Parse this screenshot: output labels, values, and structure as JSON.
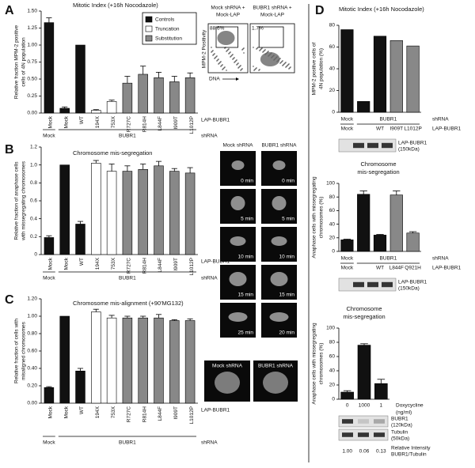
{
  "panel_labels": [
    "A",
    "B",
    "C",
    "D"
  ],
  "chart_data": [
    {
      "type": "bar",
      "title": "Mitotic Index (+16h Nocodazole)",
      "ylabel": [
        "Relative fraction MPM-2 positive",
        "cells of 4N population"
      ],
      "categories": [
        "Mock",
        "Mock",
        "WT",
        "194X",
        "753X",
        "R727C",
        "R814H",
        "L844F",
        "I909T",
        "L1012P"
      ],
      "series": [
        {
          "name": "Controls",
          "color": "#111111",
          "values": [
            1.33,
            0.07,
            1.0,
            null,
            null,
            null,
            null,
            null,
            null,
            null
          ],
          "errors": [
            0.07,
            0.02,
            null,
            null,
            null,
            null,
            null,
            null,
            null,
            null
          ]
        },
        {
          "name": "Truncation",
          "color": "#ffffff",
          "values": [
            null,
            null,
            null,
            0.04,
            0.17,
            null,
            null,
            null,
            null,
            null
          ],
          "errors": [
            null,
            null,
            null,
            0.01,
            0.02,
            null,
            null,
            null,
            null,
            null
          ]
        },
        {
          "name": "Substitution",
          "color": "#888888",
          "values": [
            null,
            null,
            null,
            null,
            null,
            0.44,
            0.57,
            0.52,
            0.46,
            0.52
          ],
          "errors": [
            null,
            null,
            null,
            null,
            null,
            0.1,
            0.12,
            0.08,
            0.08,
            0.07
          ]
        }
      ],
      "ylim": [
        0,
        1.5
      ],
      "yticks": [
        {
          "value": 0,
          "label": "0.00"
        },
        0.25,
        {
          "value": 0.5,
          "label": "0.50"
        },
        0.75,
        {
          "value": 1,
          "label": "1.00"
        },
        1.25,
        {
          "value": 1.5,
          "label": "1.50"
        }
      ],
      "row_label": "LAP-BUBR1",
      "group_label": "shRNA",
      "groups": [
        "Mock",
        "BUBR1"
      ],
      "legend": "upper right"
    },
    {
      "type": "bar",
      "title": "Chromosome mis-segregation",
      "ylabel": [
        "Relative fraction of anaphase cells",
        "with missegregating chromosomes"
      ],
      "categories": [
        "Mock",
        "Mock",
        "WT",
        "194X",
        "753X",
        "R727C",
        "R814H",
        "L844F",
        "I909T",
        "L1012P"
      ],
      "values": [
        0.19,
        1.0,
        0.34,
        1.02,
        0.93,
        0.93,
        0.95,
        0.99,
        0.93,
        0.91
      ],
      "errors": [
        0.02,
        null,
        0.03,
        0.03,
        0.08,
        0.06,
        0.06,
        0.05,
        0.03,
        0.06
      ],
      "colors": [
        "#111111",
        "#111111",
        "#111111",
        "#ffffff",
        "#ffffff",
        "#888888",
        "#888888",
        "#888888",
        "#888888",
        "#888888"
      ],
      "ylim": [
        0,
        1.2
      ],
      "yticks": [
        0,
        0.2,
        0.4,
        0.6,
        0.8,
        {
          "value": 1,
          "label": "1.0"
        },
        1.2
      ],
      "row_label": "LAP-BUBR1",
      "group_label": "shRNA",
      "groups": [
        "Mock",
        "BUBR1"
      ]
    },
    {
      "type": "bar",
      "title": "Chromosome mis-alignment (+90'MG132)",
      "ylabel": [
        "Relative fraction of cells with",
        "misaligned chromosomes"
      ],
      "categories": [
        "Mock",
        "Mock",
        "WT",
        "194X",
        "753X",
        "R727C",
        "R814H",
        "L844F",
        "I909T",
        "L1012P"
      ],
      "values": [
        0.18,
        1.0,
        0.37,
        1.05,
        0.98,
        0.98,
        0.98,
        0.98,
        0.95,
        0.95
      ],
      "errors": [
        0.01,
        null,
        0.03,
        0.03,
        0.03,
        0.02,
        0.02,
        0.04,
        0.01,
        0.02
      ],
      "colors": [
        "#111111",
        "#111111",
        "#111111",
        "#ffffff",
        "#ffffff",
        "#888888",
        "#888888",
        "#888888",
        "#888888",
        "#888888"
      ],
      "ylim": [
        0,
        1.2
      ],
      "yticks": [
        {
          "value": 0,
          "label": "0.00"
        },
        {
          "value": 0.2,
          "label": "0.20"
        },
        {
          "value": 0.4,
          "label": "0.40"
        },
        {
          "value": 0.6,
          "label": "0.60"
        },
        {
          "value": 0.8,
          "label": "0.80"
        },
        {
          "value": 1,
          "label": "1.00"
        },
        {
          "value": 1.2,
          "label": "1.20"
        }
      ],
      "row_label": "LAP-BUBR1",
      "group_label": "shRNA",
      "groups": [
        "Mock",
        "BUBR1"
      ]
    },
    {
      "type": "bar",
      "title": "Mitotic Index (+16h Nocodazole)",
      "ylabel": [
        "MPM-2 positive cells of",
        "4N population (%)"
      ],
      "categories": [
        "Mock",
        null,
        "WT",
        "I909T",
        "L1012P"
      ],
      "values": [
        76,
        10,
        70,
        66,
        61
      ],
      "colors": [
        "#111111",
        "#111111",
        "#111111",
        "#888888",
        "#888888"
      ],
      "ylim": [
        0,
        80
      ],
      "yticks": [
        0,
        20,
        40,
        60,
        80
      ],
      "row_label": "LAP-BUBR1",
      "group_label": "shRNA",
      "groups": [
        "Mock",
        "BUBR1"
      ]
    },
    {
      "type": "bar",
      "title": [
        "Chromosome",
        "mis-segregation"
      ],
      "ylabel": [
        "Anaphase cells with missegregating",
        "chromosomes (%)"
      ],
      "categories": [
        "Mock",
        null,
        "WT",
        "L844F",
        "Q921H"
      ],
      "values": [
        17,
        84,
        24,
        83,
        27
      ],
      "errors": [
        1,
        5,
        1,
        6,
        2
      ],
      "colors": [
        "#111111",
        "#111111",
        "#111111",
        "#888888",
        "#888888"
      ],
      "ylim": [
        0,
        100
      ],
      "yticks": [
        0,
        20,
        40,
        60,
        80,
        100
      ],
      "row_label": "LAP-BUBR1",
      "group_label": "shRNA",
      "groups": [
        "Mock",
        "BUBR1"
      ]
    },
    {
      "type": "bar",
      "title": [
        "Chromosome",
        "mis-segregation"
      ],
      "ylabel": [
        "Anaphase cells with missegregating",
        "chromosomes (%)"
      ],
      "categories": [
        "0",
        "1000",
        "1"
      ],
      "values": [
        10,
        76,
        22
      ],
      "errors": [
        2,
        2,
        6
      ],
      "colors": [
        "#111111",
        "#111111",
        "#111111"
      ],
      "ylim": [
        0,
        100
      ],
      "yticks": [
        0,
        20,
        40,
        60,
        80,
        100
      ],
      "xlabel": [
        "Doxycycline",
        "(ng/ml)"
      ]
    }
  ],
  "flow": {
    "titles": [
      [
        "Mock shRNA +",
        "Mock-LAP"
      ],
      [
        "BUBR1 shRNA +",
        "Mock-LAP"
      ]
    ],
    "percents": [
      "88.6%",
      "1.7%"
    ],
    "ylabel": "MPM-2 Positivity",
    "xlabel": "DNA"
  },
  "microscopy_b": {
    "columns": [
      "Mock shRNA",
      "BUBR1 shRNA"
    ],
    "times": [
      [
        "0 min",
        "5 min",
        "10 min",
        "15 min",
        "25 min"
      ],
      [
        "0 min",
        "5 min",
        "10 min",
        "15 min",
        "20 min"
      ]
    ]
  },
  "microscopy_c": {
    "columns": [
      "Mock shRNA",
      "BUBR1 shRNA"
    ]
  },
  "blots": [
    {
      "labels": [
        [
          "LAP-BUBR1",
          "(150kDa)"
        ]
      ]
    },
    {
      "labels": [
        [
          "LAP-BUBR1",
          "(150kDa)"
        ]
      ]
    },
    {
      "labels": [
        [
          "BUBR1",
          "(120kDa)"
        ],
        [
          "Tubulin",
          "(50kDa)"
        ]
      ]
    }
  ],
  "intensity": {
    "values": [
      "1.00",
      "0.06",
      "0.13"
    ],
    "label": [
      "Relative Intensity",
      "BUBR1/Tubulin"
    ]
  }
}
